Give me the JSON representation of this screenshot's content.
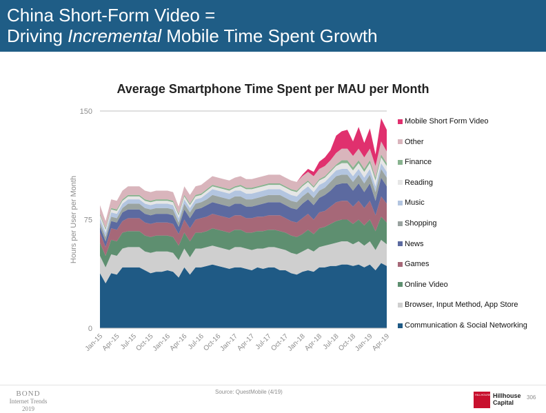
{
  "header": {
    "title_line1": "China Short-Form Video =",
    "title_line2_pre": "Driving ",
    "title_line2_em": "Incremental",
    "title_line2_post": " Mobile Time Spent Growth",
    "background_color": "#1f5d86"
  },
  "footer": {
    "source": "Source: QuestMobile (4/19)",
    "bond_name": "BOND",
    "bond_sub": "Internet Trends",
    "bond_year": "2019",
    "logo_brand": "Hillhouse",
    "logo_sub": "Capital",
    "logo_box_text": "HILLHOUSE",
    "page_number": "306"
  },
  "chart_data": {
    "type": "area",
    "stacked": true,
    "title": "Average Smartphone Time Spent per MAU per Month",
    "ylabel": "Hours per User per Month",
    "xlabel": "",
    "ylim": [
      0,
      150
    ],
    "yticks": [
      0,
      75,
      150
    ],
    "grid": "top line only",
    "legend_position": "right",
    "x_tick_labels": [
      "Jan-15",
      "Apr-15",
      "Jul-15",
      "Oct-15",
      "Jan-16",
      "Apr-16",
      "Jul-16",
      "Oct-16",
      "Jan-17",
      "Apr-17",
      "Jul-17",
      "Oct-17",
      "Jan-18",
      "Apr-18",
      "Jul-18",
      "Oct-18",
      "Jan-19",
      "Apr-19"
    ],
    "x": [
      "Jan-15",
      "Feb-15",
      "Mar-15",
      "Apr-15",
      "May-15",
      "Jun-15",
      "Jul-15",
      "Aug-15",
      "Sep-15",
      "Oct-15",
      "Nov-15",
      "Dec-15",
      "Jan-16",
      "Feb-16",
      "Mar-16",
      "Apr-16",
      "May-16",
      "Jun-16",
      "Jul-16",
      "Aug-16",
      "Sep-16",
      "Oct-16",
      "Nov-16",
      "Dec-16",
      "Jan-17",
      "Feb-17",
      "Mar-17",
      "Apr-17",
      "May-17",
      "Jun-17",
      "Jul-17",
      "Aug-17",
      "Sep-17",
      "Oct-17",
      "Nov-17",
      "Dec-17",
      "Jan-18",
      "Feb-18",
      "Mar-18",
      "Apr-18",
      "May-18",
      "Jun-18",
      "Jul-18",
      "Aug-18",
      "Sep-18",
      "Oct-18",
      "Nov-18",
      "Dec-18",
      "Jan-19",
      "Feb-19",
      "Mar-19",
      "Apr-19"
    ],
    "series": [
      {
        "name": "Communication & Social Networking",
        "color": "#1f5a85",
        "values": [
          38,
          31,
          38,
          37,
          42,
          42,
          42,
          42,
          40,
          38,
          39,
          39,
          40,
          39,
          35,
          42,
          37,
          42,
          42,
          43,
          44,
          43,
          42,
          41,
          42,
          42,
          41,
          40,
          42,
          41,
          42,
          42,
          40,
          40,
          38,
          37,
          39,
          40,
          39,
          42,
          42,
          43,
          43,
          44,
          44,
          43,
          44,
          42,
          44,
          40,
          45,
          43
        ]
      },
      {
        "name": "Browser, Input Method, App Store",
        "color": "#cfcfcf",
        "values": [
          12,
          11,
          13,
          13,
          13,
          14,
          14,
          14,
          13,
          14,
          14,
          14,
          13,
          13,
          12,
          13,
          12,
          13,
          13,
          13,
          13,
          13,
          13,
          13,
          14,
          14,
          14,
          14,
          13,
          14,
          14,
          14,
          15,
          14,
          14,
          14,
          14,
          15,
          14,
          14,
          15,
          15,
          16,
          16,
          16,
          15,
          16,
          15,
          16,
          14,
          16,
          15
        ]
      },
      {
        "name": "Online Video",
        "color": "#5e8f70",
        "values": [
          9,
          8,
          10,
          10,
          11,
          11,
          11,
          11,
          11,
          11,
          11,
          11,
          11,
          11,
          10,
          11,
          11,
          11,
          11,
          11,
          12,
          12,
          12,
          12,
          12,
          12,
          11,
          12,
          12,
          12,
          12,
          12,
          12,
          12,
          12,
          12,
          12,
          13,
          12,
          13,
          13,
          14,
          15,
          15,
          15,
          14,
          15,
          14,
          15,
          13,
          16,
          15
        ]
      },
      {
        "name": "Games",
        "color": "#a66878",
        "values": [
          7,
          6,
          8,
          8,
          8,
          9,
          9,
          9,
          9,
          9,
          9,
          9,
          9,
          9,
          8,
          9,
          9,
          9,
          10,
          10,
          10,
          10,
          10,
          10,
          10,
          10,
          10,
          10,
          10,
          10,
          10,
          10,
          11,
          10,
          10,
          10,
          11,
          11,
          10,
          11,
          11,
          12,
          13,
          13,
          13,
          12,
          13,
          12,
          13,
          11,
          14,
          13
        ]
      },
      {
        "name": "News",
        "color": "#5c6aa0",
        "values": [
          4,
          4,
          5,
          5,
          6,
          6,
          6,
          6,
          6,
          6,
          6,
          6,
          6,
          6,
          5,
          7,
          7,
          7,
          7,
          8,
          8,
          8,
          8,
          8,
          8,
          8,
          8,
          8,
          8,
          9,
          9,
          9,
          9,
          9,
          9,
          9,
          10,
          10,
          10,
          10,
          11,
          11,
          12,
          12,
          12,
          11,
          12,
          11,
          12,
          10,
          13,
          12
        ]
      },
      {
        "name": "Shopping",
        "color": "#9aa3a0",
        "values": [
          3,
          3,
          3,
          3,
          3,
          4,
          4,
          4,
          4,
          4,
          4,
          4,
          4,
          4,
          3,
          4,
          4,
          4,
          4,
          4,
          5,
          5,
          5,
          5,
          5,
          5,
          5,
          5,
          5,
          5,
          5,
          5,
          5,
          5,
          5,
          5,
          5,
          5,
          5,
          5,
          5,
          6,
          6,
          6,
          6,
          6,
          6,
          6,
          6,
          6,
          6,
          6
        ]
      },
      {
        "name": "Music",
        "color": "#b3c5e0",
        "values": [
          3,
          3,
          3,
          3,
          3,
          3,
          3,
          3,
          3,
          3,
          3,
          3,
          3,
          3,
          3,
          3,
          3,
          3,
          3,
          4,
          4,
          4,
          4,
          4,
          4,
          4,
          4,
          4,
          4,
          4,
          4,
          4,
          4,
          4,
          4,
          4,
          4,
          4,
          4,
          4,
          4,
          4,
          4,
          4,
          4,
          4,
          4,
          4,
          4,
          4,
          4,
          4
        ]
      },
      {
        "name": "Reading",
        "color": "#e6e6e6",
        "values": [
          2,
          2,
          2,
          2,
          2,
          2,
          2,
          2,
          2,
          2,
          2,
          2,
          2,
          2,
          2,
          2,
          2,
          2,
          2,
          2,
          2,
          2,
          2,
          2,
          2,
          3,
          3,
          3,
          3,
          3,
          3,
          3,
          3,
          3,
          3,
          3,
          3,
          3,
          3,
          3,
          3,
          3,
          3,
          4,
          4,
          4,
          4,
          4,
          4,
          4,
          4,
          4
        ]
      },
      {
        "name": "Finance",
        "color": "#88b38f",
        "values": [
          1,
          1,
          1,
          1,
          1,
          1,
          1,
          1,
          1,
          1,
          1,
          1,
          1,
          1,
          1,
          1,
          1,
          1,
          1,
          1,
          1,
          1,
          1,
          1,
          1,
          1,
          1,
          1,
          1,
          1,
          1,
          1,
          1,
          1,
          1,
          1,
          1,
          1,
          1,
          1,
          1,
          1,
          1,
          2,
          2,
          2,
          2,
          2,
          2,
          2,
          2,
          2
        ]
      },
      {
        "name": "Other",
        "color": "#d9b5bc",
        "values": [
          6,
          5,
          6,
          6,
          6,
          6,
          6,
          6,
          6,
          6,
          6,
          6,
          6,
          6,
          5,
          6,
          6,
          6,
          6,
          6,
          6,
          6,
          6,
          6,
          6,
          6,
          6,
          6,
          6,
          6,
          6,
          6,
          6,
          6,
          6,
          6,
          6,
          6,
          7,
          7,
          7,
          7,
          8,
          8,
          8,
          8,
          8,
          8,
          8,
          8,
          9,
          8
        ]
      },
      {
        "name": "Mobile Short Form Video",
        "color": "#e0306e",
        "values": [
          0,
          0,
          0,
          0,
          0,
          0,
          0,
          0,
          0,
          0,
          0,
          0,
          0,
          0,
          0,
          0,
          0,
          0,
          0,
          0,
          0,
          0,
          0,
          0,
          0,
          0,
          0,
          0,
          0,
          0,
          0,
          0,
          0,
          0,
          0,
          0,
          1,
          2,
          3,
          5,
          6,
          7,
          12,
          12,
          13,
          10,
          15,
          10,
          14,
          8,
          16,
          15
        ]
      }
    ]
  }
}
